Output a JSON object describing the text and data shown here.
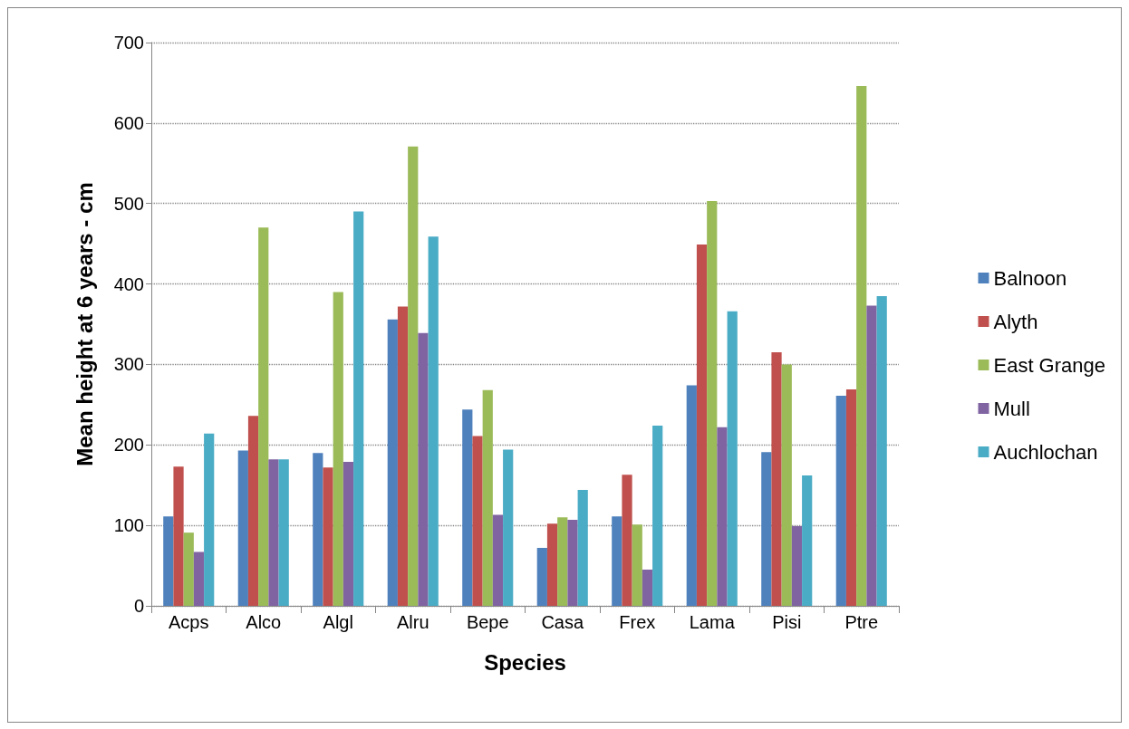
{
  "chart_data": {
    "type": "bar",
    "xlabel": "Species",
    "ylabel": "Mean height at 6 years - cm",
    "categories": [
      "Acps",
      "Alco",
      "Algl",
      "Alru",
      "Bepe",
      "Casa",
      "Frex",
      "Lama",
      "Pisi",
      "Ptre"
    ],
    "series": [
      {
        "name": "Balnoon",
        "color": "#4f81bd",
        "values": [
          111,
          193,
          190,
          356,
          244,
          72,
          111,
          274,
          191,
          261
        ]
      },
      {
        "name": "Alyth",
        "color": "#c0504d",
        "values": [
          173,
          236,
          172,
          372,
          211,
          102,
          163,
          449,
          315,
          269
        ]
      },
      {
        "name": "East Grange",
        "color": "#9bbb59",
        "values": [
          91,
          470,
          390,
          571,
          268,
          110,
          101,
          503,
          300,
          646
        ]
      },
      {
        "name": "Mull",
        "color": "#8064a2",
        "values": [
          67,
          182,
          179,
          339,
          113,
          107,
          45,
          222,
          99,
          373
        ]
      },
      {
        "name": "Auchlochan",
        "color": "#4bacc6",
        "values": [
          214,
          182,
          490,
          459,
          194,
          144,
          224,
          366,
          162,
          385
        ]
      }
    ],
    "ylim": [
      0,
      700
    ],
    "yticks": [
      0,
      100,
      200,
      300,
      400,
      500,
      600,
      700
    ],
    "grid": "y",
    "legend": "right"
  }
}
